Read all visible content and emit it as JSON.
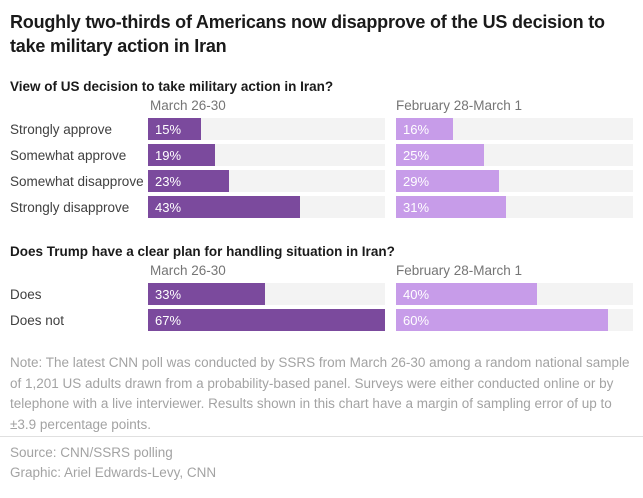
{
  "header": {
    "title": "Roughly two-thirds of Americans now disapprove of the US decision to take military action in Iran"
  },
  "colors": {
    "bar_recent": "#7B4A9D",
    "bar_prior": "#C79CE9",
    "track": "#F3F3F3",
    "value_label": "#FFFFFF"
  },
  "chart_data": [
    {
      "type": "bar",
      "title": "View of US decision to take military action in Iran?",
      "column_headers": [
        "March 26-30",
        "February 28-March 1"
      ],
      "categories": [
        "Strongly approve",
        "Somewhat approve",
        "Somewhat disapprove",
        "Strongly disapprove"
      ],
      "series": [
        {
          "name": "March 26-30",
          "values": [
            15,
            19,
            23,
            43
          ]
        },
        {
          "name": "February 28-March 1",
          "values": [
            16,
            25,
            29,
            31
          ]
        }
      ],
      "value_suffix": "%",
      "scale_max": 67,
      "orientation": "horizontal",
      "grid": false,
      "legend": "column-headers"
    },
    {
      "type": "bar",
      "title": "Does Trump have a clear plan for handling situation in Iran?",
      "column_headers": [
        "March 26-30",
        "February 28-March 1"
      ],
      "categories": [
        "Does",
        "Does not"
      ],
      "series": [
        {
          "name": "March 26-30",
          "values": [
            33,
            67
          ]
        },
        {
          "name": "February 28-March 1",
          "values": [
            40,
            60
          ]
        }
      ],
      "value_suffix": "%",
      "scale_max": 67,
      "orientation": "horizontal",
      "grid": false,
      "legend": "column-headers"
    }
  ],
  "note": {
    "text": "Note: The latest CNN poll was conducted by SSRS from March 26-30 among a random national sample of 1,201 US adults drawn from a probability-based panel. Surveys were either conducted online or by telephone with a live interviewer. Results shown in this chart have a margin of sampling error of up to ±3.9 percentage points."
  },
  "footer": {
    "source": "Source: CNN/SSRS polling",
    "graphic": "Graphic: Ariel Edwards-Levy, CNN"
  }
}
